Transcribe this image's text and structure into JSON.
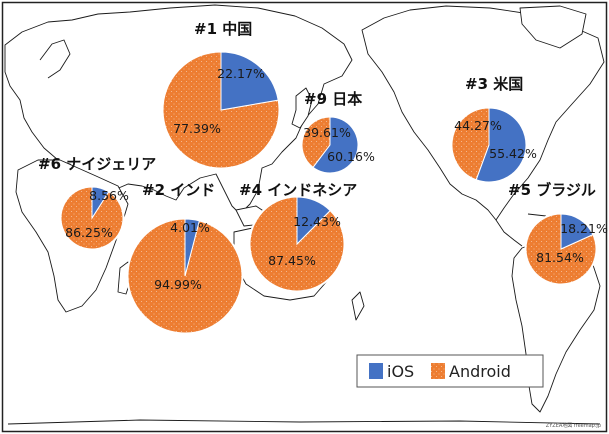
{
  "chart_data": {
    "type": "pie",
    "legend": {
      "placement": "bottom-right",
      "entries": [
        "iOS",
        "Android"
      ]
    },
    "colors": {
      "iOS": "#4472C4",
      "Android": "#ED7D31",
      "map_land": "#ffffff",
      "map_border": "#1a1a1a"
    },
    "credit": "ZYZEA地図 freemap.jp",
    "pies": [
      {
        "id": "china",
        "title": "#1 中国",
        "labels": {
          "ios": "22.17%",
          "android": "77.39%"
        },
        "values": {
          "ios": 22.17,
          "android": 77.39
        }
      },
      {
        "id": "japan",
        "title": "#9 日本",
        "labels": {
          "ios": "60.16%",
          "android": "39.61%"
        },
        "values": {
          "ios": 60.16,
          "android": 39.61
        }
      },
      {
        "id": "usa",
        "title": "#3 米国",
        "labels": {
          "ios": "55.42%",
          "android": "44.27%"
        },
        "values": {
          "ios": 55.42,
          "android": 44.27
        }
      },
      {
        "id": "nigeria",
        "title": "#6 ナイジェリア",
        "labels": {
          "ios": "8.56%",
          "android": "86.25%"
        },
        "values": {
          "ios": 8.56,
          "android": 86.25
        }
      },
      {
        "id": "india",
        "title": "#2 インド",
        "labels": {
          "ios": "4.01%",
          "android": "94.99%"
        },
        "values": {
          "ios": 4.01,
          "android": 94.99
        }
      },
      {
        "id": "indonesia",
        "title": "#4 インドネシア",
        "labels": {
          "ios": "12.43%",
          "android": "87.45%"
        },
        "values": {
          "ios": 12.43,
          "android": 87.45
        }
      },
      {
        "id": "brazil",
        "title": "#5 ブラジル",
        "labels": {
          "ios": "18.21%",
          "android": "81.54%"
        },
        "values": {
          "ios": 18.21,
          "android": 81.54
        }
      }
    ]
  }
}
